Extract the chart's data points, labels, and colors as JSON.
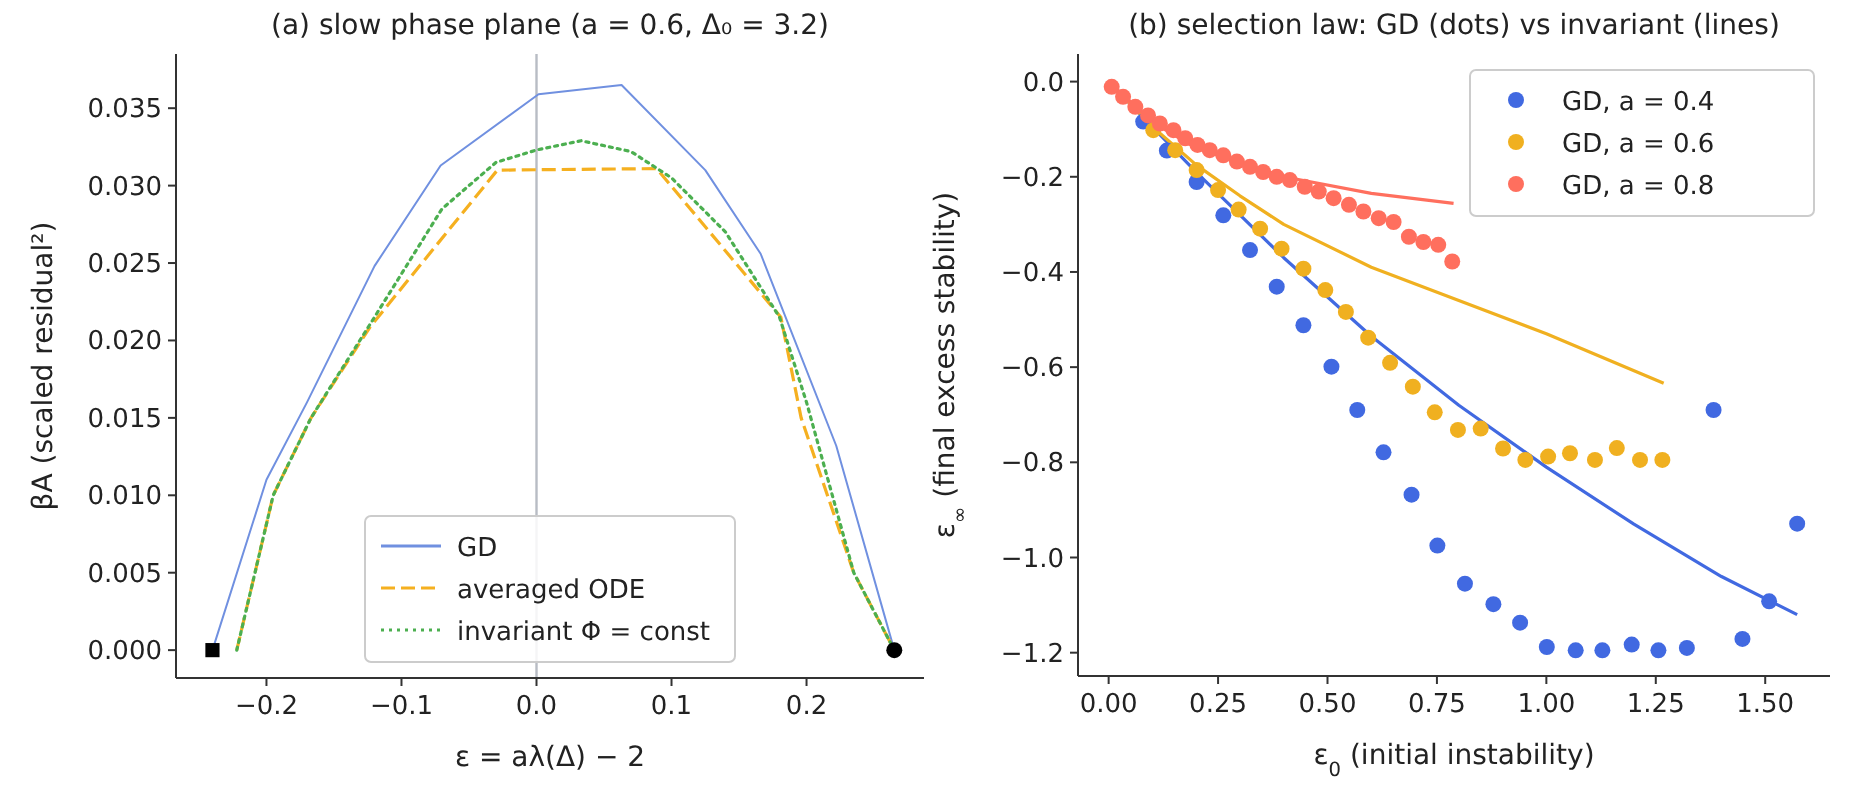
{
  "chart_data": [
    {
      "type": "line",
      "title": "(a) slow phase plane (a = 0.6, Δ₀ = 3.2)",
      "xlabel": "ε = aλ(Δ) − 2",
      "ylabel": "βA (scaled residual²)",
      "xlim": [
        -0.267,
        0.287
      ],
      "ylim": [
        -0.0018,
        0.0385
      ],
      "xticks": [
        {
          "value": -0.2,
          "label": "−0.2"
        },
        {
          "value": -0.1,
          "label": "−0.1"
        },
        {
          "value": 0,
          "label": "0.0"
        },
        {
          "value": 0.1,
          "label": "0.1"
        },
        {
          "value": 0.2,
          "label": "0.2"
        }
      ],
      "yticks": [
        {
          "value": 0,
          "label": "0.000"
        },
        {
          "value": 0.005,
          "label": "0.005"
        },
        {
          "value": 0.01,
          "label": "0.010"
        },
        {
          "value": 0.015,
          "label": "0.015"
        },
        {
          "value": 0.02,
          "label": "0.020"
        },
        {
          "value": 0.025,
          "label": "0.025"
        },
        {
          "value": 0.03,
          "label": "0.030"
        },
        {
          "value": 0.035,
          "label": "0.035"
        }
      ],
      "ref_lines": [
        {
          "axis": "x",
          "value": 0,
          "color": "#b8bcc4"
        }
      ],
      "legend": "bottom",
      "series": [
        {
          "name": "GD",
          "line_style": "solid",
          "color": "#7090e0",
          "x": [
            -0.24,
            -0.2,
            -0.17,
            -0.12,
            -0.071,
            0.0015,
            0.063,
            0.125,
            0.166,
            0.222,
            0.265
          ],
          "values": [
            0,
            0.011,
            0.016,
            0.0248,
            0.0313,
            0.0359,
            0.0365,
            0.031,
            0.0256,
            0.0132,
            0
          ]
        },
        {
          "name": "averaged ODE",
          "line_style": "dashed",
          "color": "#f5b020",
          "x": [
            -0.222,
            -0.195,
            -0.167,
            -0.123,
            -0.029,
            0.089,
            0.181,
            0.196,
            0.235,
            0.265
          ],
          "values": [
            0,
            0.01,
            0.015,
            0.0209,
            0.031,
            0.0311,
            0.0215,
            0.015,
            0.005,
            0
          ]
        },
        {
          "name": "invariant Φ = const",
          "line_style": "dotted",
          "color": "#4caf50",
          "x": [
            -0.222,
            -0.195,
            -0.167,
            -0.12,
            -0.07,
            -0.03,
            0,
            0.033,
            0.07,
            0.1,
            0.14,
            0.18,
            0.2,
            0.235,
            0.265
          ],
          "values": [
            0,
            0.01,
            0.015,
            0.0215,
            0.0285,
            0.0315,
            0.0323,
            0.0329,
            0.0322,
            0.0305,
            0.027,
            0.0215,
            0.016,
            0.005,
            0
          ]
        },
        {
          "type": "scatter",
          "marker": "square",
          "color": "#000000",
          "x": [
            -0.24
          ],
          "values": [
            0
          ]
        },
        {
          "type": "scatter",
          "marker": "circle",
          "color": "#000000",
          "x": [
            0.265
          ],
          "values": [
            0
          ]
        }
      ]
    },
    {
      "type": "scatter",
      "title": "(b) selection law: GD (dots) vs invariant (lines)",
      "xlabel": "ε$_{0}$ (initial instability)",
      "ylabel": "ε$_{∞}$ (final excess stability)",
      "xlim": [
        -0.07,
        1.648
      ],
      "ylim": [
        -1.249,
        0.058
      ],
      "xticks": [
        {
          "value": 0,
          "label": "0.00"
        },
        {
          "value": 0.25,
          "label": "0.25"
        },
        {
          "value": 0.5,
          "label": "0.50"
        },
        {
          "value": 0.75,
          "label": "0.75"
        },
        {
          "value": 1,
          "label": "1.00"
        },
        {
          "value": 1.25,
          "label": "1.25"
        },
        {
          "value": 1.5,
          "label": "1.50"
        }
      ],
      "yticks": [
        {
          "value": 0,
          "label": "0.0"
        },
        {
          "value": -0.2,
          "label": "−0.2"
        },
        {
          "value": -0.4,
          "label": "−0.4"
        },
        {
          "value": -0.6,
          "label": "−0.6"
        },
        {
          "value": -0.8,
          "label": "−0.8"
        },
        {
          "value": -1,
          "label": "−1.0"
        },
        {
          "value": -1.2,
          "label": "−1.2"
        }
      ],
      "legend": "top right",
      "marker": "circle",
      "series": [
        {
          "type": "line",
          "marker": "none",
          "line_style": "solid",
          "color": "#4169e1",
          "x": [
            0,
            0.1,
            0.2,
            0.4,
            0.6,
            0.8,
            1.0,
            1.2,
            1.4,
            1.573
          ],
          "values": [
            0,
            -0.095,
            -0.19,
            -0.37,
            -0.535,
            -0.68,
            -0.81,
            -0.93,
            -1.04,
            -1.12
          ]
        },
        {
          "type": "line",
          "marker": "none",
          "line_style": "solid",
          "color": "#f0b020",
          "x": [
            0,
            0.1,
            0.2,
            0.3,
            0.4,
            0.6,
            0.8,
            1.0,
            1.268
          ],
          "values": [
            0,
            -0.095,
            -0.175,
            -0.24,
            -0.3,
            -0.39,
            -0.46,
            -0.53,
            -0.634
          ]
        },
        {
          "type": "line",
          "marker": "none",
          "line_style": "solid",
          "color": "#ff6f5e",
          "x": [
            0,
            0.1,
            0.2,
            0.4,
            0.6,
            0.788
          ],
          "values": [
            0,
            -0.085,
            -0.14,
            -0.2,
            -0.235,
            -0.256
          ]
        },
        {
          "name": "GD, a = 0.4",
          "color": "#4169e1",
          "x": [
            0.079,
            0.133,
            0.201,
            0.262,
            0.323,
            0.384,
            0.445,
            0.509,
            0.568,
            0.628,
            0.692,
            0.751,
            0.814,
            0.879,
            0.94,
            1.001,
            1.067,
            1.128,
            1.195,
            1.256,
            1.321,
            1.382,
            1.448,
            1.509,
            1.573
          ],
          "values": [
            -0.084,
            -0.145,
            -0.211,
            -0.281,
            -0.354,
            -0.431,
            -0.512,
            -0.599,
            -0.69,
            -0.779,
            -0.868,
            -0.975,
            -1.055,
            -1.098,
            -1.137,
            -1.188,
            -1.195,
            -1.195,
            -1.183,
            -1.195,
            -1.19,
            -0.69,
            -1.171,
            -1.092,
            -0.929
          ]
        },
        {
          "name": "GD, a = 0.6",
          "color": "#f0b020",
          "x": [
            0.102,
            0.152,
            0.201,
            0.25,
            0.297,
            0.346,
            0.395,
            0.445,
            0.495,
            0.542,
            0.593,
            0.643,
            0.695,
            0.745,
            0.798,
            0.85,
            0.901,
            0.952,
            1.004,
            1.054,
            1.111,
            1.161,
            1.214,
            1.265
          ],
          "values": [
            -0.102,
            -0.144,
            -0.186,
            -0.228,
            -0.269,
            -0.309,
            -0.351,
            -0.393,
            -0.438,
            -0.484,
            -0.538,
            -0.591,
            -0.641,
            -0.695,
            -0.732,
            -0.729,
            -0.771,
            -0.795,
            -0.788,
            -0.781,
            -0.795,
            -0.77,
            -0.795,
            -0.795
          ]
        },
        {
          "name": "GD, a = 0.8",
          "color": "#ff6f5e",
          "x": [
            0.007,
            0.033,
            0.061,
            0.09,
            0.117,
            0.148,
            0.175,
            0.203,
            0.231,
            0.262,
            0.293,
            0.323,
            0.353,
            0.384,
            0.414,
            0.448,
            0.48,
            0.514,
            0.549,
            0.582,
            0.617,
            0.651,
            0.686,
            0.719,
            0.753,
            0.785
          ],
          "values": [
            -0.011,
            -0.032,
            -0.053,
            -0.071,
            -0.088,
            -0.102,
            -0.119,
            -0.133,
            -0.144,
            -0.155,
            -0.168,
            -0.179,
            -0.19,
            -0.2,
            -0.207,
            -0.221,
            -0.231,
            -0.245,
            -0.259,
            -0.273,
            -0.287,
            -0.295,
            -0.326,
            -0.337,
            -0.343,
            -0.378
          ]
        }
      ]
    }
  ]
}
